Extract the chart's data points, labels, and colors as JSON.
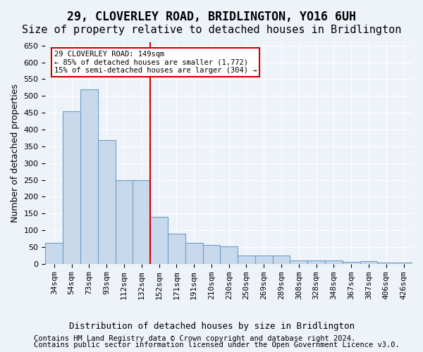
{
  "title": "29, CLOVERLEY ROAD, BRIDLINGTON, YO16 6UH",
  "subtitle": "Size of property relative to detached houses in Bridlington",
  "xlabel": "Distribution of detached houses by size in Bridlington",
  "ylabel": "Number of detached properties",
  "categories": [
    "34sqm",
    "54sqm",
    "73sqm",
    "93sqm",
    "112sqm",
    "132sqm",
    "152sqm",
    "171sqm",
    "191sqm",
    "210sqm",
    "230sqm",
    "250sqm",
    "269sqm",
    "289sqm",
    "308sqm",
    "328sqm",
    "348sqm",
    "367sqm",
    "387sqm",
    "406sqm",
    "426sqm"
  ],
  "values": [
    62,
    455,
    520,
    368,
    248,
    248,
    140,
    90,
    62,
    57,
    53,
    25,
    25,
    25,
    10,
    10,
    10,
    6,
    8,
    4,
    4
  ],
  "bar_color": "#c9d9ec",
  "bar_edge_color": "#6a9fc8",
  "vline_x": 5.5,
  "vline_color": "#cc0000",
  "annotation_line1": "29 CLOVERLEY ROAD: 149sqm",
  "annotation_line2": "← 85% of detached houses are smaller (1,772)",
  "annotation_line3": "15% of semi-detached houses are larger (304) →",
  "ylim": [
    0,
    660
  ],
  "yticks": [
    0,
    50,
    100,
    150,
    200,
    250,
    300,
    350,
    400,
    450,
    500,
    550,
    600,
    650
  ],
  "bg_color": "#eef2f9",
  "plot_bg_color": "#eef2f9",
  "grid_color": "#ffffff",
  "footer_line1": "Contains HM Land Registry data © Crown copyright and database right 2024.",
  "footer_line2": "Contains public sector information licensed under the Open Government Licence v3.0.",
  "title_fontsize": 12,
  "subtitle_fontsize": 11,
  "xlabel_fontsize": 9,
  "ylabel_fontsize": 9,
  "tick_fontsize": 8,
  "annotation_fontsize": 7.5,
  "footer_fontsize": 7.5
}
